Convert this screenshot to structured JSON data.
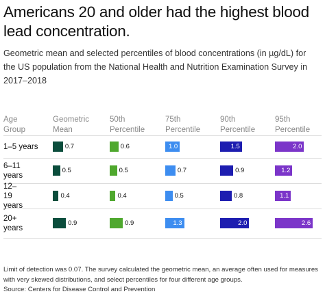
{
  "chart_data": {
    "type": "bar-table",
    "title": "Americans 20 and older had the highest blood lead concentration.",
    "subtitle": "Geometric mean and selected percentiles of blood concentrations (in µg/dL) for the US population from the National Health and Nutrition Examination Survey in 2017–2018",
    "row_header": "Age Group",
    "categories": [
      "1–5 years",
      "6–11 years",
      "12–19 years",
      "20+ years"
    ],
    "series": [
      {
        "name": "Geometric Mean",
        "color": "#0b4d3c",
        "values": [
          0.7,
          0.5,
          0.4,
          0.9
        ]
      },
      {
        "name": "50th Percentile",
        "color": "#4fa82e",
        "values": [
          0.6,
          0.5,
          0.4,
          0.9
        ]
      },
      {
        "name": "75th Percentile",
        "color": "#3d8df0",
        "values": [
          1.0,
          0.7,
          0.5,
          1.3
        ],
        "value_labels": [
          "1.0",
          "0.7",
          "0.5",
          "1.3"
        ]
      },
      {
        "name": "90th Percentile",
        "color": "#1d1db0",
        "values": [
          1.5,
          0.9,
          0.8,
          2.0
        ],
        "value_labels": [
          "1.5",
          "0.9",
          "0.8",
          "2.0"
        ]
      },
      {
        "name": "95th Percentile",
        "color": "#7b35c9",
        "values": [
          2.0,
          1.2,
          1.1,
          2.6
        ],
        "value_labels": [
          "2.0",
          "1.2",
          "1.1",
          "2.6"
        ]
      }
    ],
    "note": "Limit of detection was 0.07. The survey calculated the geometric mean, an average often used for measures with very skewed distributions, and select percentiles for four different age groups.",
    "source": "Source: Centers for Disease Control and Prevention"
  }
}
